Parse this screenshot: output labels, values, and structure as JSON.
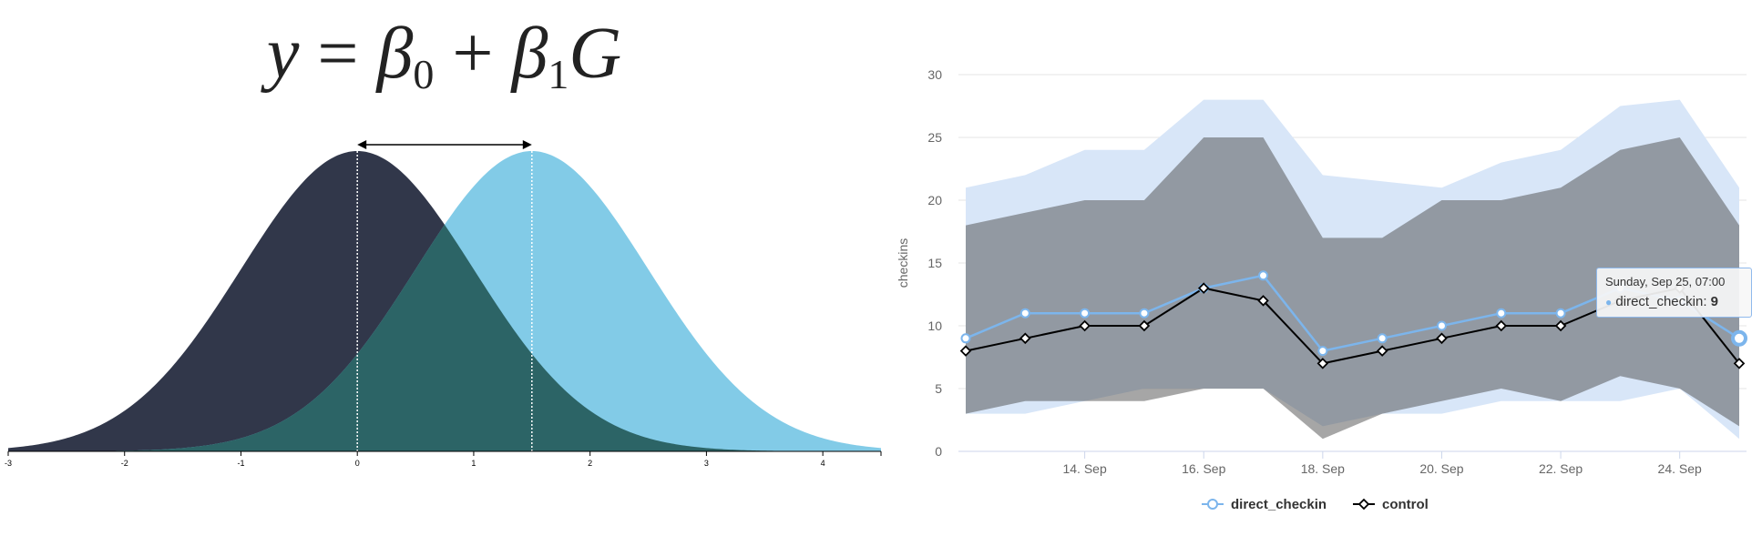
{
  "left_panel": {
    "equation": {
      "lhs": "y",
      "op1": "=",
      "b0": "β",
      "b0_sub": "0",
      "op2": "+",
      "b1": "β",
      "b1_sub": "1",
      "var": "G"
    },
    "colors": {
      "curve_a": "#31374a",
      "curve_b": "#82cbe7",
      "overlap": "#2c6466"
    }
  },
  "chart_data": [
    {
      "type": "area",
      "title": "",
      "xlabel": "",
      "ylabel": "",
      "xlim": [
        -3,
        4.5
      ],
      "xticks": [
        -3,
        -2,
        -1,
        0,
        1,
        2,
        3,
        4
      ],
      "xtick_labels": [
        "-3",
        "-2",
        "-1",
        "0",
        "1",
        "2",
        "3",
        "4"
      ],
      "series": [
        {
          "distribution": "normal",
          "mean": 0,
          "sd": 1,
          "color": "#31374a"
        },
        {
          "distribution": "normal",
          "mean": 1.5,
          "sd": 1,
          "color": "#82cbe7"
        }
      ],
      "annotations": [
        {
          "type": "double-arrow",
          "from": 0,
          "to": 1.5
        }
      ]
    },
    {
      "type": "line",
      "ylabel": "checkins",
      "ylim": [
        0,
        30
      ],
      "yticks": [
        0,
        5,
        10,
        15,
        20,
        25,
        30
      ],
      "xticks": [
        "14. Sep",
        "16. Sep",
        "18. Sep",
        "20. Sep",
        "22. Sep",
        "24. Sep"
      ],
      "x": [
        "2016-09-12",
        "2016-09-13",
        "2016-09-14",
        "2016-09-15",
        "2016-09-16",
        "2016-09-17",
        "2016-09-18",
        "2016-09-19",
        "2016-09-20",
        "2016-09-21",
        "2016-09-22",
        "2016-09-23",
        "2016-09-24",
        "2016-09-25"
      ],
      "series": [
        {
          "name": "direct_checkin",
          "color": "#7cb5ec",
          "values": [
            9,
            11,
            11,
            11,
            13,
            14,
            8,
            9,
            10,
            11,
            11,
            13,
            12,
            9
          ],
          "range_low": [
            3,
            3,
            4,
            5,
            5,
            5,
            2,
            3,
            3,
            4,
            4,
            4,
            5,
            1
          ],
          "range_high": [
            21,
            22,
            24,
            24,
            28,
            28,
            22,
            21.5,
            21,
            23,
            24,
            27.5,
            28,
            21
          ]
        },
        {
          "name": "control",
          "color": "#000000",
          "values": [
            8,
            9,
            10,
            10,
            13,
            12,
            7,
            8,
            9,
            10,
            10,
            12,
            13,
            7
          ],
          "range_low": [
            3,
            4,
            4,
            4,
            5,
            5,
            1,
            3,
            4,
            5,
            4,
            6,
            5,
            2
          ],
          "range_high": [
            18,
            19,
            20,
            20,
            25,
            25,
            17,
            17,
            20,
            20,
            21,
            24,
            25,
            18
          ]
        }
      ],
      "legend": "bottom-center",
      "grid": true,
      "tooltip": {
        "date": "Sunday, Sep 25, 07:00",
        "series": "direct_checkin",
        "value": "9"
      }
    }
  ]
}
